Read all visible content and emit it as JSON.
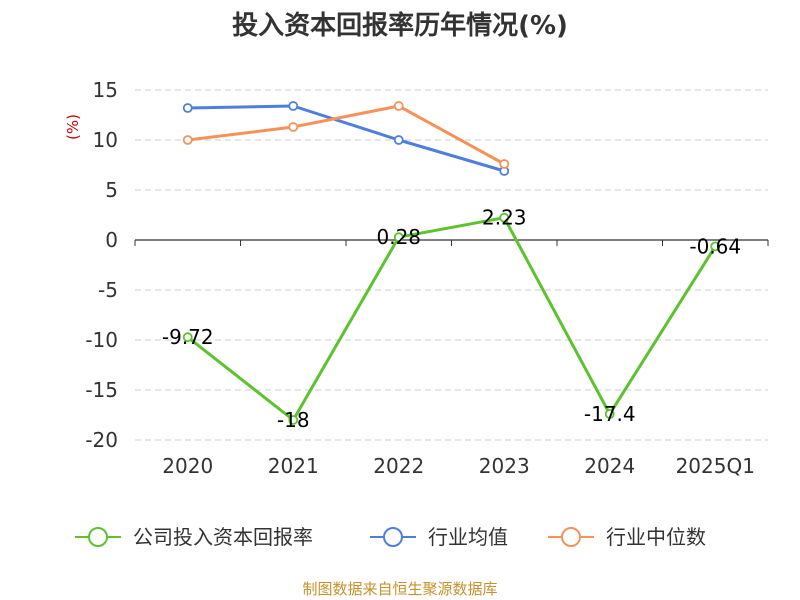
{
  "chart_data": {
    "type": "line",
    "title": "投入资本回报率历年情况(%)",
    "ylabel": "(%)",
    "xlabel": "",
    "categories": [
      "2020",
      "2021",
      "2022",
      "2023",
      "2024",
      "2025Q1"
    ],
    "ylim": [
      -20,
      15
    ],
    "yticks": [
      15,
      10,
      5,
      0,
      -5,
      -10,
      -15,
      -20
    ],
    "grid": true,
    "legend_position": "bottom",
    "series": [
      {
        "name": "公司投入资本回报率",
        "color": "#5cc22d",
        "values": [
          -9.72,
          -18,
          0.28,
          2.23,
          -17.4,
          -0.64
        ],
        "labels": [
          "-9.72",
          "-18",
          "0.28",
          "2.23",
          "-17.4",
          "-0.64"
        ]
      },
      {
        "name": "行业均值",
        "color": "#4f7fde",
        "values": [
          13.2,
          13.4,
          10.0,
          6.9,
          null,
          null
        ]
      },
      {
        "name": "行业中位数",
        "color": "#f5925a",
        "values": [
          10.0,
          11.3,
          13.4,
          7.6,
          null,
          null
        ]
      }
    ]
  },
  "source": "制图数据来自恒生聚源数据库"
}
